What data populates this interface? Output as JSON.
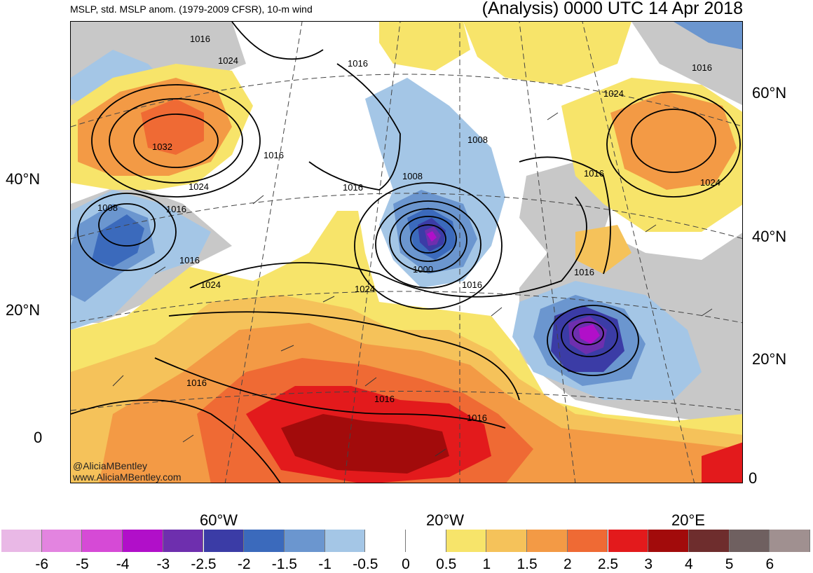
{
  "header": {
    "title_left": "MSLP, std. MSLP anom. (1979-2009 CFSR), 10-m wind",
    "title_right": "(Analysis) 0000 UTC 14 Apr 2018"
  },
  "axes": {
    "lat_left": [
      "40°N",
      "20°N",
      "0"
    ],
    "lat_right": [
      "60°N",
      "40°N",
      "20°N",
      "0"
    ],
    "lon_bottom": [
      "60°W",
      "20°W",
      "20°E"
    ]
  },
  "credits": [
    "@AliciaMBentley",
    "www.AliciaMBentley.com"
  ],
  "pressure_labels": [
    "1016",
    "1024",
    "1032",
    "1008",
    "1016",
    "1024",
    "1016",
    "1016",
    "1016",
    "1016",
    "1024",
    "1016",
    "1008",
    "1008",
    "1016",
    "1000",
    "1024",
    "1016",
    "1016",
    "1024",
    "1016",
    "1024",
    "1016",
    "1016"
  ],
  "colorbar": {
    "labels": [
      "-6",
      "-5",
      "-4",
      "-3",
      "-2.5",
      "-2",
      "-1.5",
      "-1",
      "-0.5",
      "0",
      "0.5",
      "1",
      "1.5",
      "2",
      "2.5",
      "3",
      "4",
      "5",
      "6"
    ],
    "colors": [
      "#e9b8e6",
      "#e384e0",
      "#d64ad6",
      "#b10fc9",
      "#6e2fae",
      "#3b3ca6",
      "#3b6abc",
      "#6b96cf",
      "#a4c6e6",
      "#ffffff",
      "#ffffff",
      "#f7e46a",
      "#f5c25a",
      "#f39a45",
      "#ef6a34",
      "#e31a1c",
      "#a20b0b",
      "#6e2d2d",
      "#6f6060",
      "#a09090"
    ]
  },
  "features": {
    "anomaly_fill": "std. MSLP anomaly",
    "land_mask": "gray",
    "lines": "MSLP isobars"
  }
}
